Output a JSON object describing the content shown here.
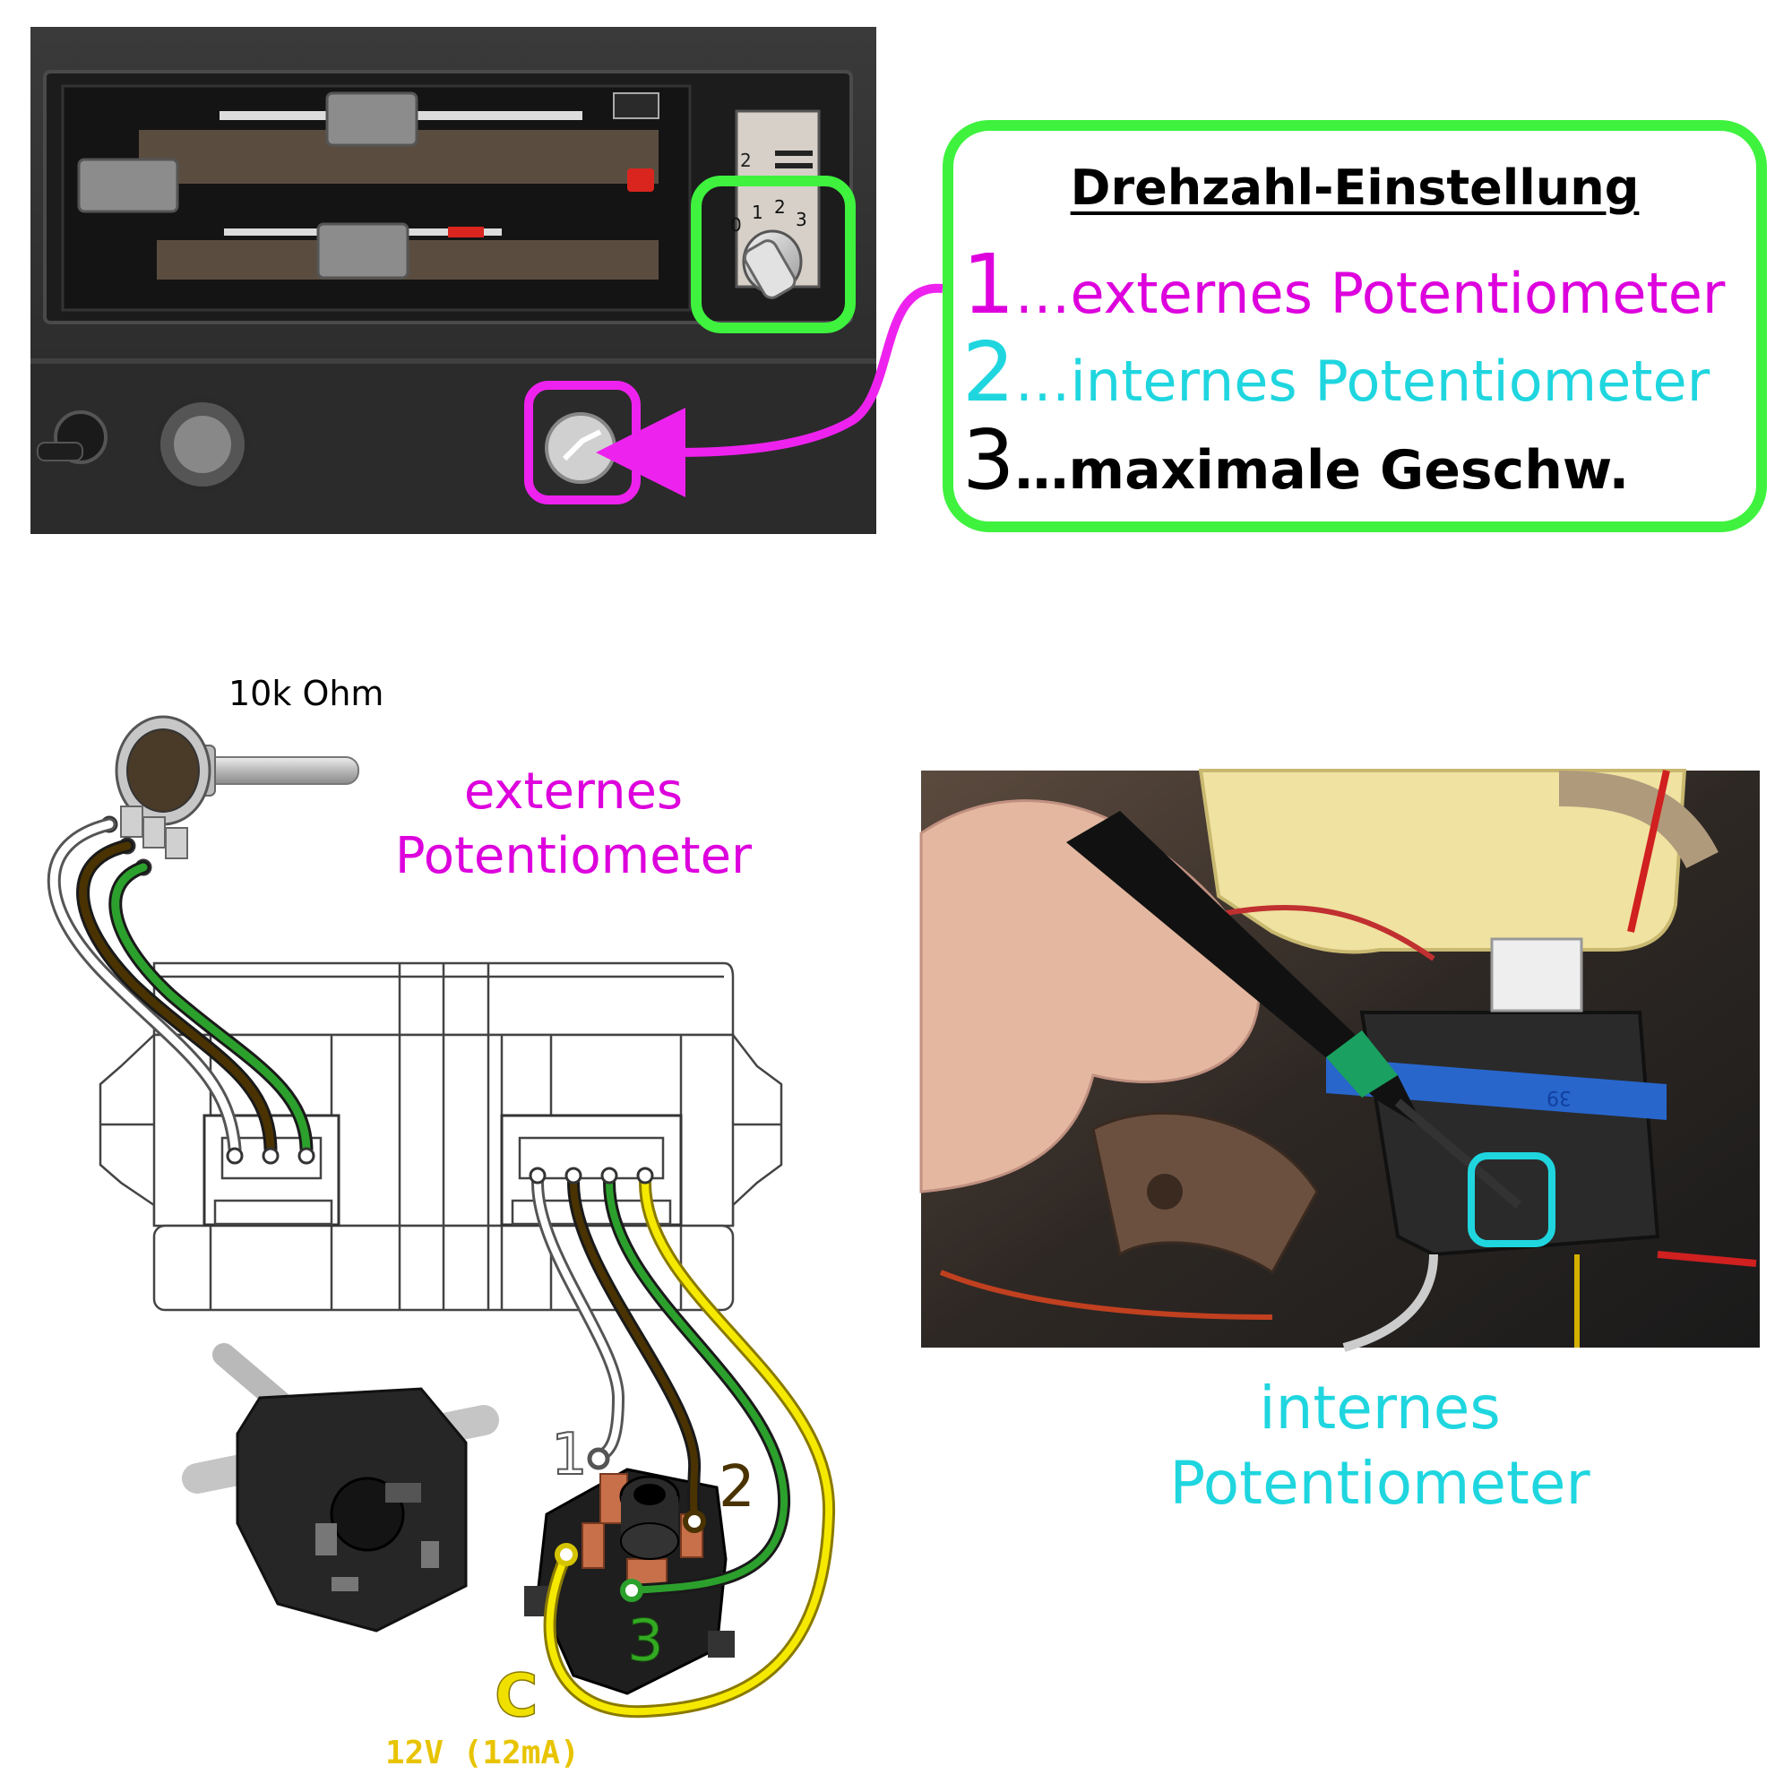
{
  "legend": {
    "title": "Drehzahl-Einstellung",
    "items": [
      {
        "num": "1",
        "text": "…externes Potentiometer"
      },
      {
        "num": "2",
        "text": "…internes Potentiometer"
      },
      {
        "num": "3",
        "text": "…maximale Geschw."
      }
    ]
  },
  "dash_photo": {
    "dial_marks": [
      "0",
      "1",
      "2",
      "3"
    ],
    "fan_marks": [
      "2"
    ]
  },
  "external_pot": {
    "resistance": "10k Ohm",
    "label_line1": "externes",
    "label_line2": "Potentiometer"
  },
  "internal_pot": {
    "label_line1": "internes",
    "label_line2": "Potentiometer",
    "tie_text": "39"
  },
  "switch_pins": {
    "pin1": "1",
    "pin2": "2",
    "pin3": "3",
    "pinC": "C",
    "supply": "12V (12mA)"
  },
  "colors": {
    "green_highlight": "#3ef23e",
    "magenta": "#dd00dd",
    "cyan": "#1fd6df",
    "wire_white": "#ffffff",
    "wire_brown": "#4a3300",
    "wire_green": "#2ca02c",
    "wire_yellow": "#f5e900"
  }
}
